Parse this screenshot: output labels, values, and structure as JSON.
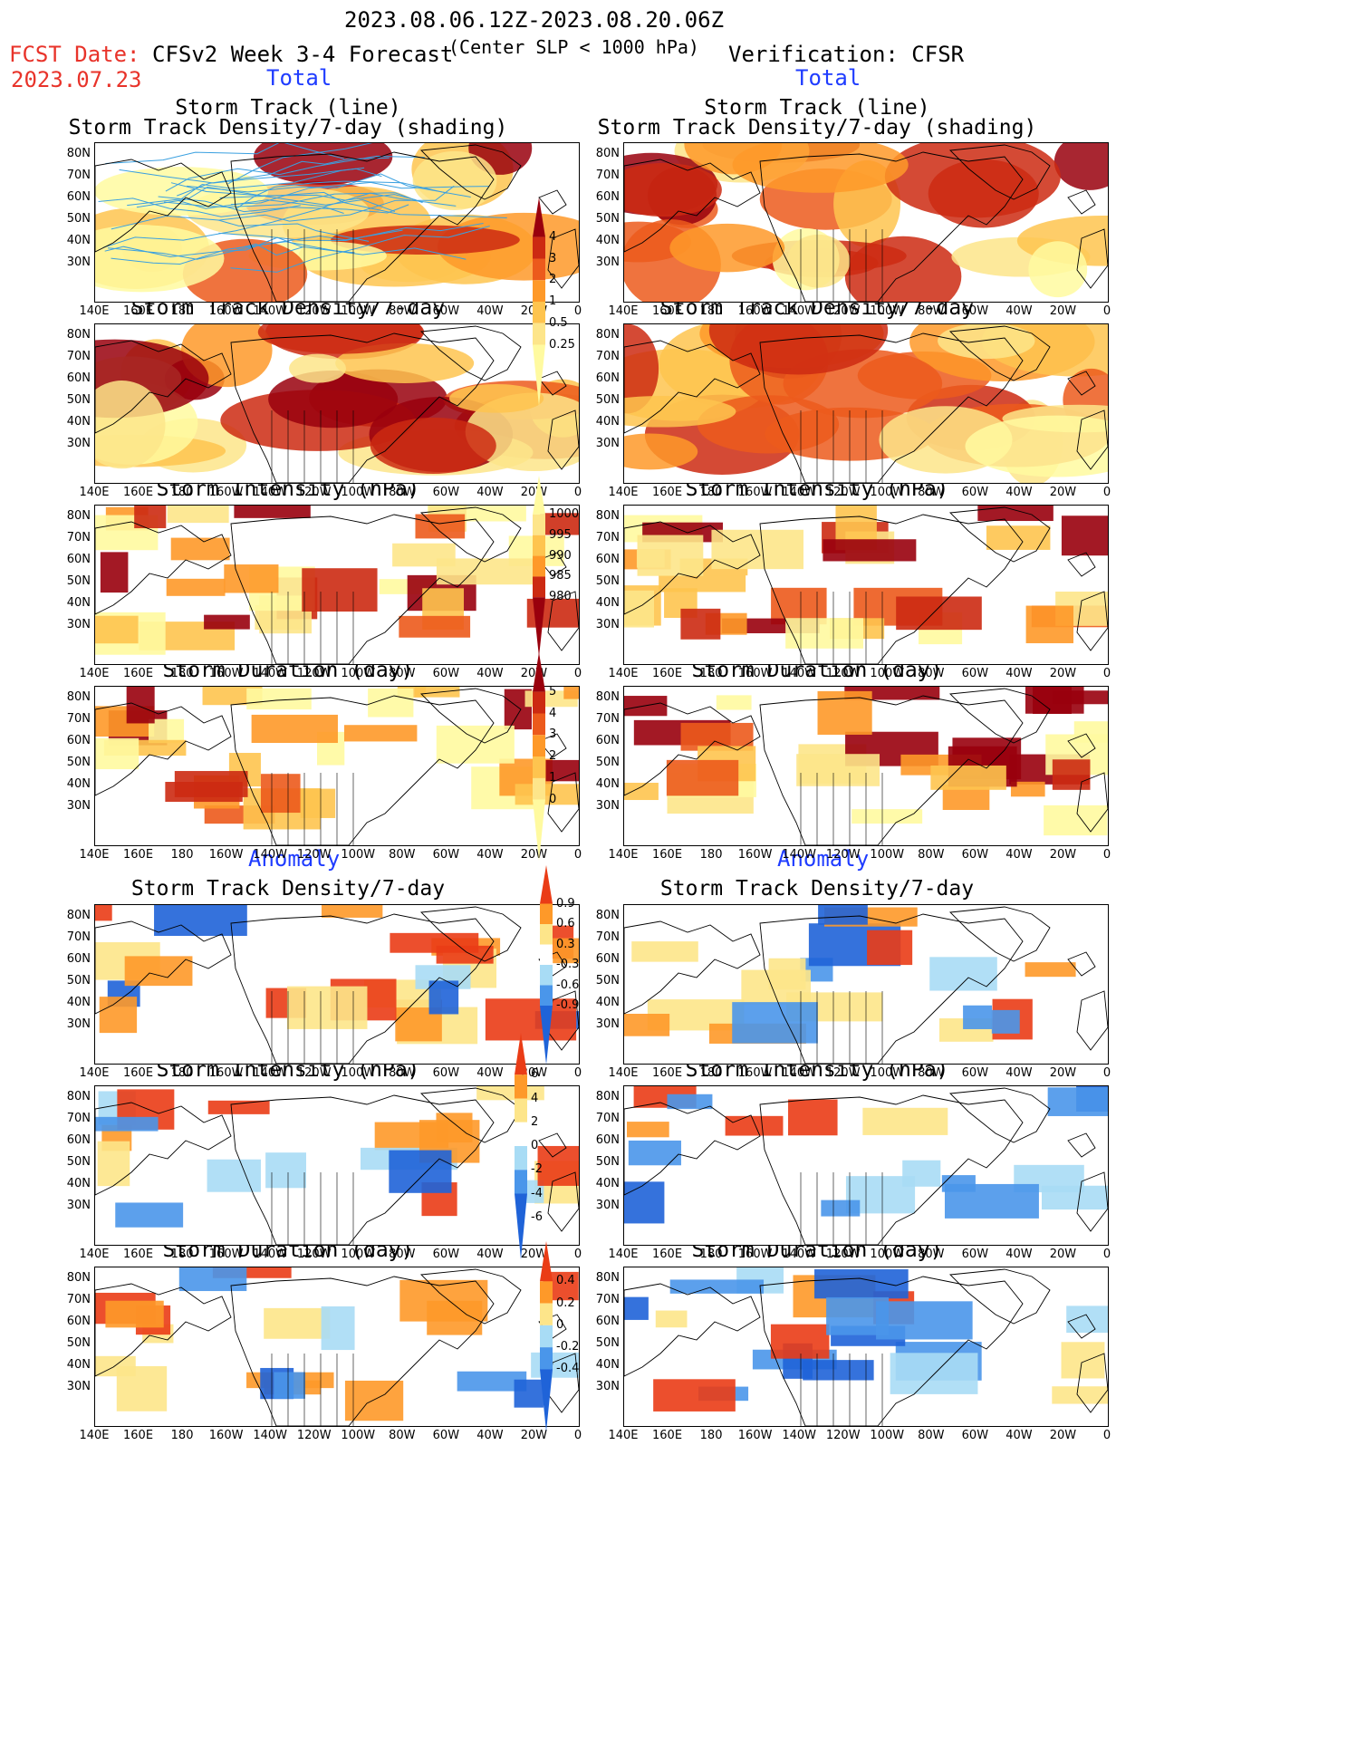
{
  "header": {
    "date_range": "2023.08.06.12Z-2023.08.20.06Z",
    "fcst_date_label": "FCST Date:",
    "fcst_date": "2023.07.23",
    "model": "CFSv2 Week 3-4 Forecast",
    "condition": "(Center SLP < 1000 hPa)",
    "verification": "Verification: CFSR"
  },
  "section_labels": {
    "total_left": "Total",
    "total_right": "Total",
    "anomaly_left": "Anomaly",
    "anomaly_right": "Anomaly"
  },
  "panels": {
    "p1_line1": "Storm Track (line)",
    "p1_line2": "Storm Track Density/7-day (shading)",
    "density": "Storm Track Density/7-day",
    "intensity": "Storm Intensity (hPa)",
    "duration": "Storm Duration (day)"
  },
  "axes": {
    "lat_ticks": [
      "80N",
      "70N",
      "60N",
      "50N",
      "40N",
      "30N"
    ],
    "lon_ticks": [
      "140E",
      "160E",
      "180",
      "160W",
      "140W",
      "120W",
      "100W",
      "80W",
      "60W",
      "40W",
      "20W",
      "0"
    ]
  },
  "colorbars": {
    "density_total": [
      "4",
      "3",
      "2",
      "1",
      "0.5",
      "0.25"
    ],
    "intensity_total": [
      "1000",
      "995",
      "990",
      "985",
      "980"
    ],
    "duration_total": [
      "5",
      "4",
      "3",
      "2",
      "1",
      "0"
    ],
    "density_anom": [
      "0.9",
      "0.6",
      "0.3",
      "-0.3",
      "-0.6",
      "-0.9"
    ],
    "intensity_anom": [
      "6",
      "4",
      "2",
      "0",
      "-2",
      "-4",
      "-6"
    ],
    "duration_anom": [
      "0.4",
      "0.2",
      "0",
      "-0.2",
      "-0.4"
    ]
  },
  "colors": {
    "warm": [
      "#fffaa0",
      "#fde58a",
      "#fec44f",
      "#fe9929",
      "#ec5a1c",
      "#cc2a12",
      "#99000d"
    ],
    "anom": [
      "#1f63d8",
      "#4a96ea",
      "#a8dcf5",
      "#ffffff",
      "#fde58a",
      "#fe9929",
      "#ea3c16"
    ],
    "track_line": "#3aa0e0",
    "red_text": "#e8332a",
    "blue_text": "#1f3cff"
  }
}
